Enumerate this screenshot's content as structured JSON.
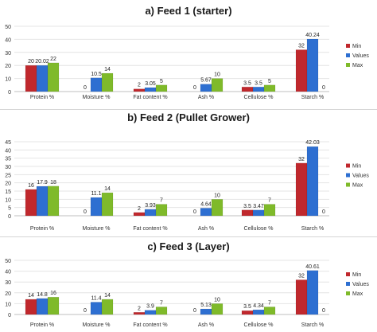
{
  "chart_data": [
    {
      "type": "bar",
      "title": "a)   Feed 1 (starter)",
      "categories": [
        "Protein %",
        "Moisture %",
        "Fat content %",
        "Ash %",
        "Cellulose %",
        "Starch %"
      ],
      "series": [
        {
          "name": "Min",
          "values": [
            20,
            0,
            2,
            0,
            3.5,
            32
          ],
          "color": "#c0282d"
        },
        {
          "name": "Values",
          "values": [
            20.02,
            10.5,
            3.05,
            5.67,
            3.5,
            40.24
          ],
          "color": "#2e6fd1"
        },
        {
          "name": "Max",
          "values": [
            22,
            14,
            5,
            10,
            5,
            0
          ],
          "color": "#7fba2a"
        }
      ],
      "value_labels": [
        [
          "20",
          "0",
          "2",
          "0",
          "3.5",
          "32"
        ],
        [
          "20.02",
          "10.5",
          "3.05",
          "5.67",
          "3.5",
          "40.24"
        ],
        [
          "22",
          "14",
          "5",
          "10",
          "5",
          "0"
        ]
      ],
      "y_ticks": [
        "0",
        "10",
        "20",
        "30",
        "40",
        "50"
      ],
      "ylim": [
        0,
        50
      ],
      "legend": "right"
    },
    {
      "type": "bar",
      "title": "b)   Feed 2 (Pullet Grower)",
      "categories": [
        "Protein %",
        "Moisture %",
        "Fat content %",
        "Ash %",
        "Cellulose %",
        "Starch %"
      ],
      "series": [
        {
          "name": "Min",
          "values": [
            16,
            0,
            2,
            0,
            3.5,
            32
          ],
          "color": "#c0282d"
        },
        {
          "name": "Values",
          "values": [
            17.9,
            11.1,
            3.93,
            4.64,
            3.47,
            42.03
          ],
          "color": "#2e6fd1"
        },
        {
          "name": "Max",
          "values": [
            18,
            14,
            7,
            10,
            7,
            0
          ],
          "color": "#7fba2a"
        }
      ],
      "value_labels": [
        [
          "16",
          "0",
          "2",
          "0",
          "3.5",
          "32"
        ],
        [
          "17.9",
          "11.1",
          "3.93",
          "4.64",
          "3.47",
          "42.03"
        ],
        [
          "18",
          "14",
          "7",
          "10",
          "7",
          "0"
        ]
      ],
      "y_ticks": [
        "0",
        "5",
        "10",
        "15",
        "20",
        "25",
        "30",
        "35",
        "40",
        "45"
      ],
      "ylim": [
        0,
        45
      ],
      "legend": "right"
    },
    {
      "type": "bar",
      "title": "c)   Feed 3 (Layer)",
      "categories": [
        "Protein %",
        "Moisture %",
        "Fat content %",
        "Ash %",
        "Cellulose %",
        "Starch %"
      ],
      "series": [
        {
          "name": "Min",
          "values": [
            14,
            0,
            2,
            0,
            3.5,
            32
          ],
          "color": "#c0282d"
        },
        {
          "name": "Values",
          "values": [
            14.8,
            11.4,
            3.9,
            5.13,
            4.34,
            40.61
          ],
          "color": "#2e6fd1"
        },
        {
          "name": "Max",
          "values": [
            16,
            14,
            7,
            10,
            7,
            0
          ],
          "color": "#7fba2a"
        }
      ],
      "value_labels": [
        [
          "14",
          "0",
          "2",
          "0",
          "3.5",
          "32"
        ],
        [
          "14.8",
          "11.4",
          "3.9",
          "5.13",
          "4.34",
          "40.61"
        ],
        [
          "16",
          "14",
          "7",
          "10",
          "7",
          "0"
        ]
      ],
      "y_ticks": [
        "0",
        "10",
        "20",
        "30",
        "40",
        "50"
      ],
      "ylim": [
        0,
        50
      ],
      "legend": "right"
    }
  ]
}
